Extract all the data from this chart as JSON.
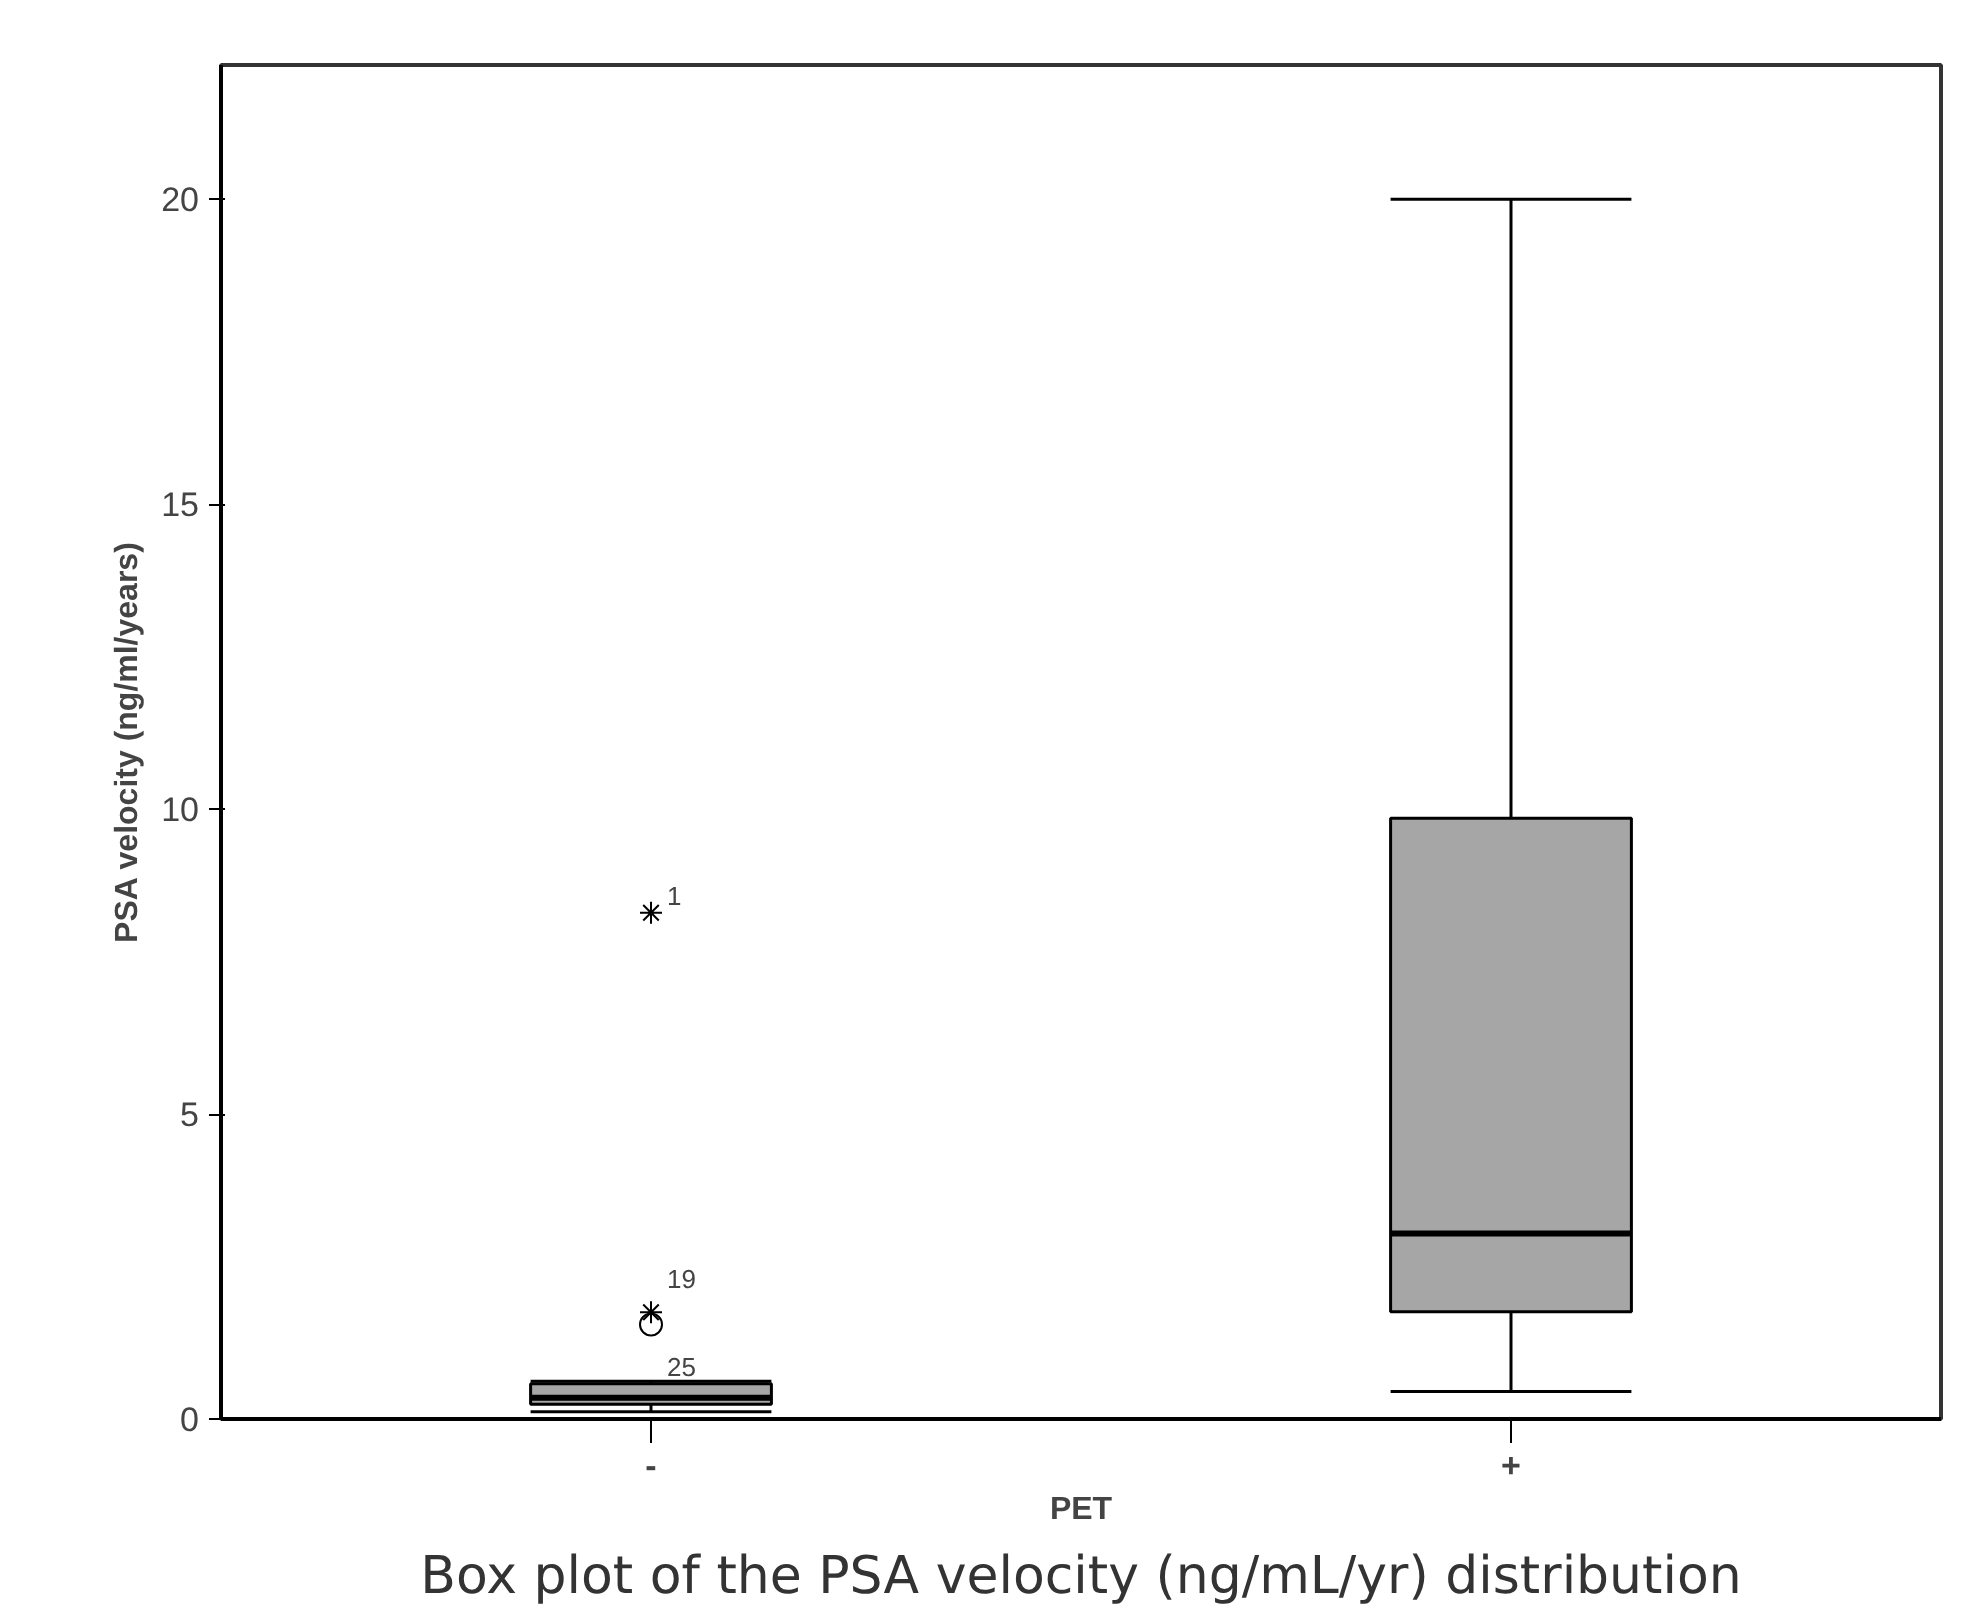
{
  "chart_data": {
    "type": "box",
    "xlabel": "PET",
    "ylabel": "PSA velocity (ng/ml/years)",
    "categories": [
      "-",
      "+"
    ],
    "boxes": [
      {
        "low": 0.12,
        "q1": 0.24,
        "median": 0.35,
        "q3": 0.58,
        "high": 0.62,
        "outliers": [
          8.3,
          1.75,
          1.55
        ]
      },
      {
        "low": 0.45,
        "q1": 1.76,
        "median": 3.04,
        "q3": 9.85,
        "high": 20
      }
    ],
    "color": "#a6a6a6",
    "ylim": [
      0,
      22.2
    ],
    "yticks": [
      0,
      5,
      10,
      15,
      20
    ],
    "grid": false,
    "annotations": [
      "1",
      "19",
      "25",
      "Box plot of the PSA velocity (ng/mL/yr) distribution"
    ]
  }
}
